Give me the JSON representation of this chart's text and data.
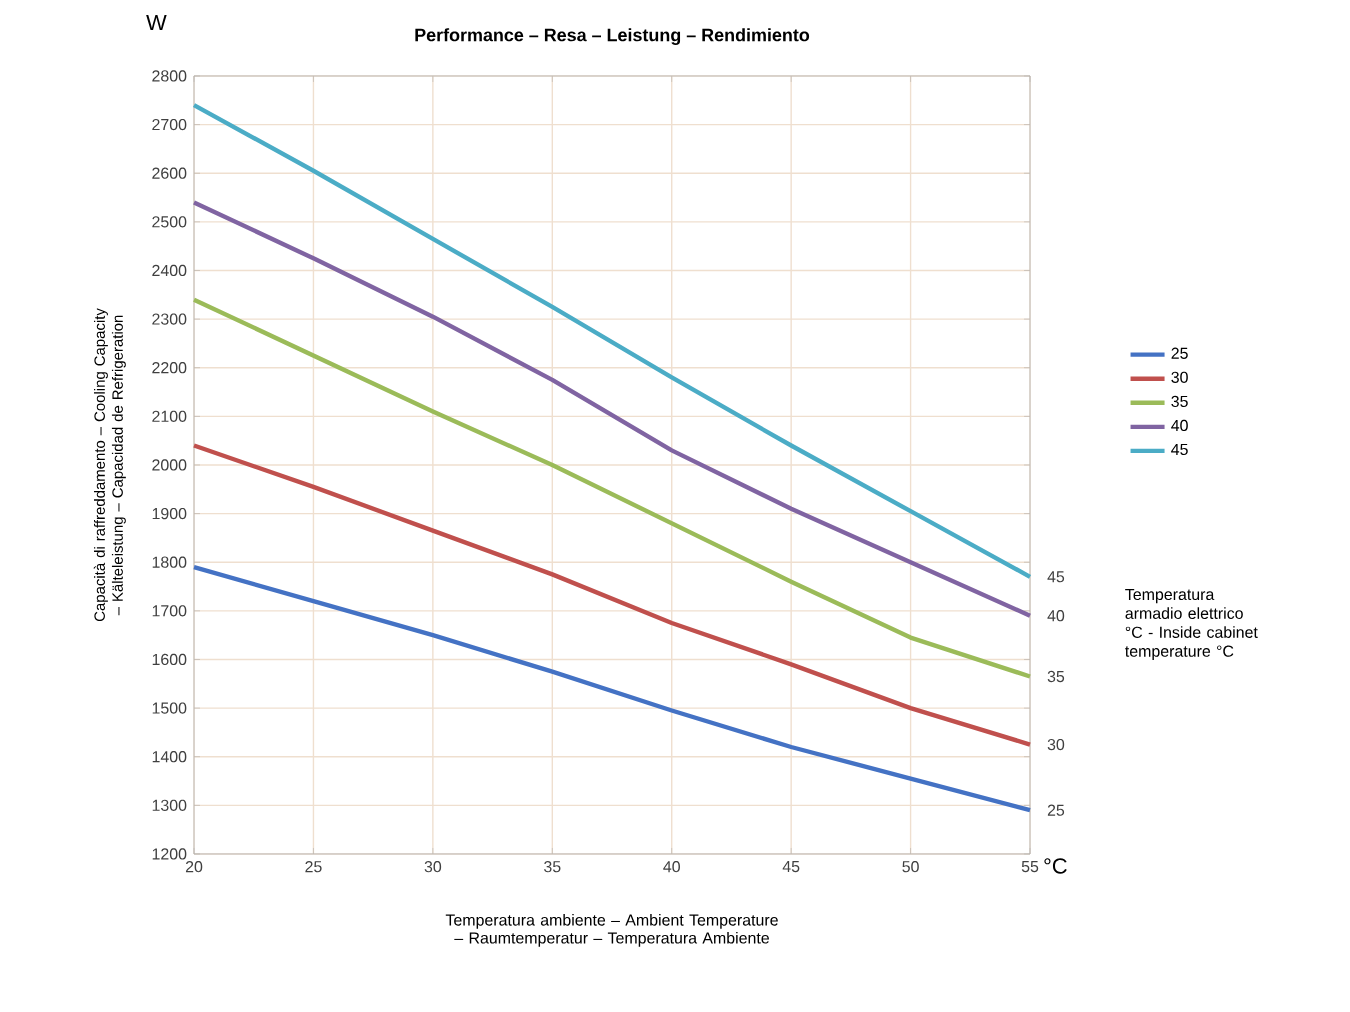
{
  "chart_data": {
    "type": "line",
    "title": "Performance – Resa – Leistung – Rendimiento",
    "xlabel": "Temperatura ambiente – Ambient Temperature – Raumtemperatur – Temperatura Ambiente",
    "ylabel": "Capacità di raffreddamento – Cooling Capacity – Kälteleistung – Capacidad de Refrigeration",
    "annotations": [
      "W",
      "°C",
      "Temperatura armadio elettrico °C - Inside cabinet temperature °C"
    ],
    "x": [
      20,
      25,
      30,
      35,
      40,
      45,
      50,
      55
    ],
    "series": [
      {
        "name": "25",
        "color": "#4472c4",
        "values": [
          1790,
          1720,
          1650,
          1575,
          1495,
          1420,
          1355,
          1290
        ]
      },
      {
        "name": "30",
        "color": "#c0504d",
        "values": [
          2040,
          1955,
          1865,
          1775,
          1675,
          1590,
          1500,
          1425
        ]
      },
      {
        "name": "35",
        "color": "#9bbb59",
        "values": [
          2340,
          2225,
          2110,
          2000,
          1880,
          1760,
          1645,
          1565
        ]
      },
      {
        "name": "40",
        "color": "#8064a2",
        "values": [
          2540,
          2425,
          2305,
          2175,
          2030,
          1910,
          1800,
          1690
        ]
      },
      {
        "name": "45",
        "color": "#4bacc6",
        "values": [
          2740,
          2605,
          2465,
          2325,
          2180,
          2040,
          1905,
          1770
        ]
      }
    ],
    "xlim": [
      20,
      55
    ],
    "xticks": [
      20,
      25,
      30,
      35,
      40,
      45,
      50,
      55
    ],
    "ylim": [
      1200,
      2800
    ],
    "yticks": [
      1200,
      1300,
      1400,
      1500,
      1600,
      1700,
      1800,
      1900,
      2000,
      2100,
      2200,
      2300,
      2400,
      2500,
      2600,
      2700,
      2800
    ],
    "grid": true,
    "legend": "right",
    "marker": "none",
    "line_style": "solid"
  }
}
